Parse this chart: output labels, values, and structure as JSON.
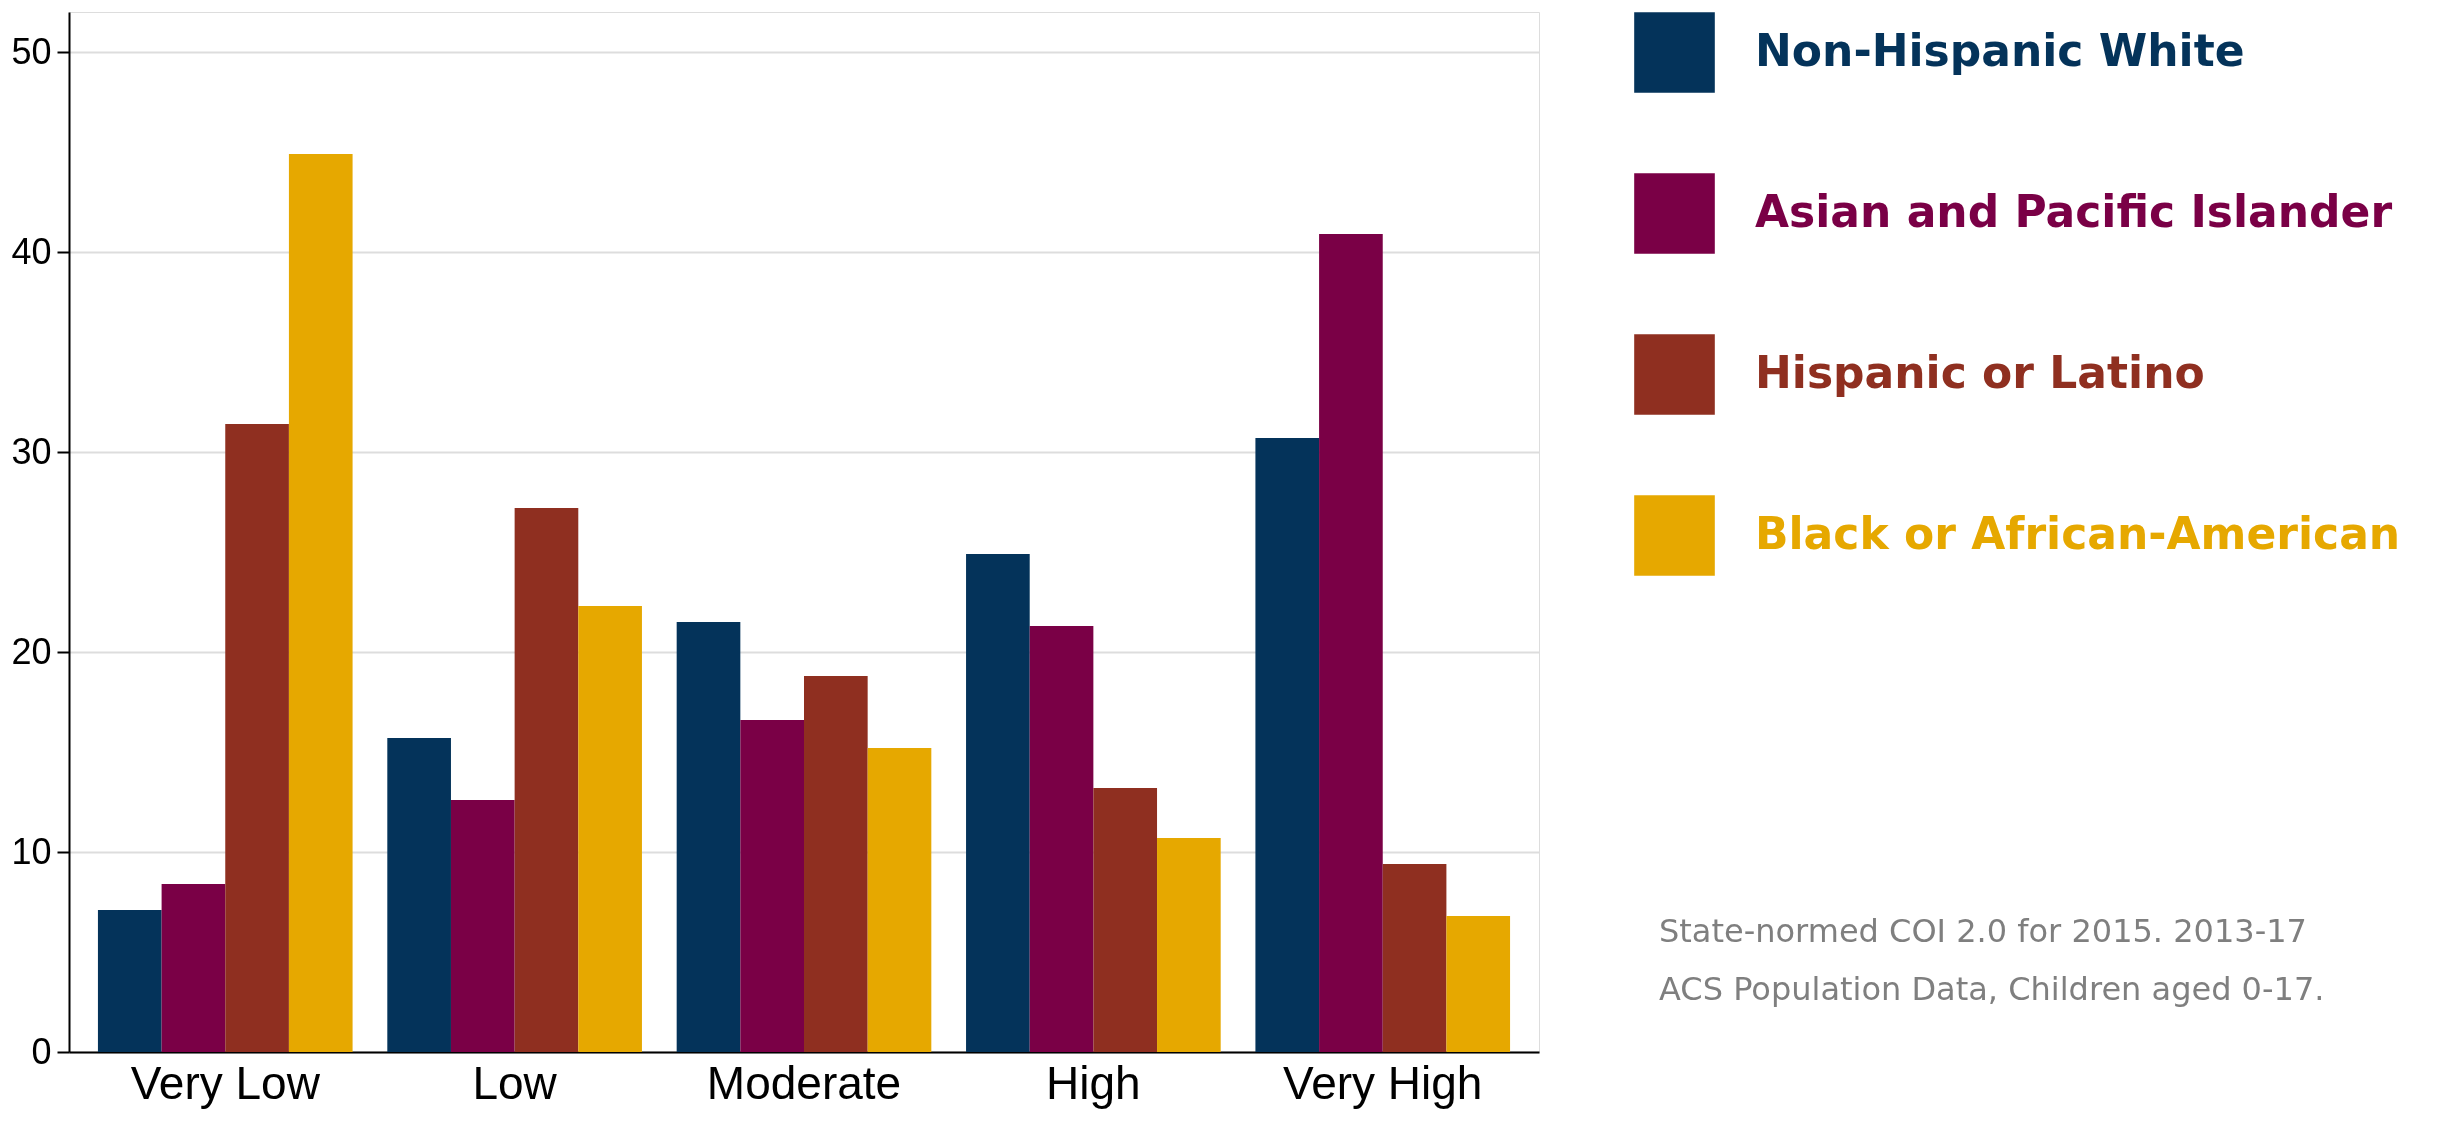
{
  "chart_data": {
    "type": "bar",
    "categories": [
      "Very Low",
      "Low",
      "Moderate",
      "High",
      "Very High"
    ],
    "series": [
      {
        "name": "Non-Hispanic White",
        "color": "#04335a",
        "values": [
          7.1,
          15.7,
          21.5,
          24.9,
          30.7
        ]
      },
      {
        "name": "Asian and Pacific Islander",
        "color": "#7a0046",
        "values": [
          8.4,
          12.6,
          16.6,
          21.3,
          40.9
        ]
      },
      {
        "name": "Hispanic or Latino",
        "color": "#8f2f20",
        "values": [
          31.4,
          27.2,
          18.8,
          13.2,
          9.4
        ]
      },
      {
        "name": "Black or African-American",
        "color": "#e6a800",
        "values": [
          44.9,
          22.3,
          15.2,
          10.7,
          6.8
        ]
      }
    ],
    "ylim": [
      0,
      52
    ],
    "yticks": [
      0,
      10,
      20,
      30,
      40,
      50
    ],
    "grid": "y",
    "legend": "right",
    "annotations": [
      "State-normed COI 2.0 for 2015. 2013-17",
      "ACS Population Data, Children aged 0-17."
    ]
  }
}
